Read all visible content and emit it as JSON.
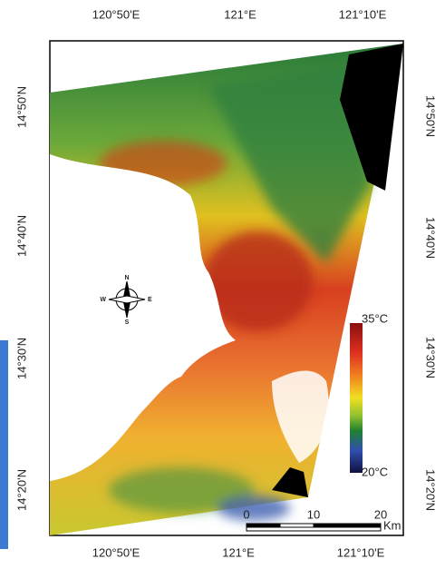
{
  "map": {
    "top_axis": [
      "120°50'E",
      "121°E",
      "121°10'E"
    ],
    "bottom_axis": [
      "120°50'E",
      "121°E",
      "121°10'E"
    ],
    "left_axis": [
      "14°50'N",
      "14°40'N",
      "14°30'N",
      "14°20'N"
    ],
    "right_axis": [
      "14°50'N",
      "14°40'N",
      "14°30'N",
      "14°20'N"
    ],
    "legend": {
      "max": "35°C",
      "min": "20°C"
    },
    "scale_bar": {
      "labels": [
        "0",
        "10",
        "20"
      ],
      "unit": "Km"
    },
    "compass": {
      "n": "N",
      "s": "S",
      "e": "E",
      "w": "W"
    }
  }
}
